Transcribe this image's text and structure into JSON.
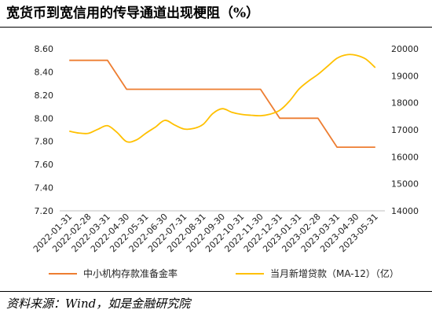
{
  "title": "宽货币到宽信用的传导通道出现梗阻（%）",
  "source": "资料来源：Wind，如是金融研究院",
  "chart_data": {
    "type": "line",
    "categories": [
      "2022-01-31",
      "2022-02-28",
      "2022-03-31",
      "2022-04-30",
      "2022-05-31",
      "2022-06-30",
      "2022-07-31",
      "2022-08-31",
      "2022-09-30",
      "2022-10-31",
      "2022-11-30",
      "2022-12-31",
      "2023-01-31",
      "2023-02-28",
      "2023-03-31",
      "2023-04-30",
      "2023-05-31"
    ],
    "x": [
      0,
      0.5,
      1,
      1.5,
      2,
      2.5,
      3,
      3.5,
      4,
      4.5,
      5,
      5.5,
      6,
      6.5,
      7,
      7.5,
      8,
      8.5,
      9,
      9.5,
      10,
      10.5,
      11,
      11.5,
      12,
      12.5,
      13,
      13.5,
      14,
      14.5,
      15,
      15.5,
      16
    ],
    "left_axis": {
      "ylim": [
        7.2,
        8.6
      ],
      "ticks": [
        "7.20",
        "7.40",
        "7.60",
        "7.80",
        "8.00",
        "8.20",
        "8.40",
        "8.60"
      ]
    },
    "right_axis": {
      "ylim": [
        14000,
        20000
      ],
      "ticks": [
        "14000",
        "15000",
        "16000",
        "17000",
        "18000",
        "19000",
        "20000"
      ]
    },
    "series": [
      {
        "name": "中小机构存款准备金率",
        "axis": "left",
        "color": "#ED7D31",
        "x": [
          0,
          2,
          3,
          10,
          11,
          13,
          14,
          16
        ],
        "values": [
          8.5,
          8.5,
          8.25,
          8.25,
          8.0,
          8.0,
          7.75,
          7.75
        ]
      },
      {
        "name": "当月新增贷款（MA-12）（亿）",
        "axis": "right",
        "color": "#FFC000",
        "x": [
          0,
          0.5,
          1,
          1.5,
          2,
          2.5,
          3,
          3.5,
          4,
          4.5,
          5,
          5.5,
          6,
          6.5,
          7,
          7.5,
          8,
          8.5,
          9,
          9.5,
          10,
          10.5,
          11,
          11.5,
          12,
          12.5,
          13,
          13.5,
          14,
          14.5,
          15,
          15.5,
          16
        ],
        "values": [
          16950,
          16880,
          16870,
          17020,
          17150,
          16900,
          16560,
          16620,
          16870,
          17100,
          17350,
          17180,
          17030,
          17050,
          17200,
          17600,
          17780,
          17650,
          17570,
          17540,
          17520,
          17580,
          17720,
          18050,
          18500,
          18800,
          19050,
          19350,
          19650,
          19780,
          19760,
          19620,
          19300
        ]
      }
    ]
  }
}
